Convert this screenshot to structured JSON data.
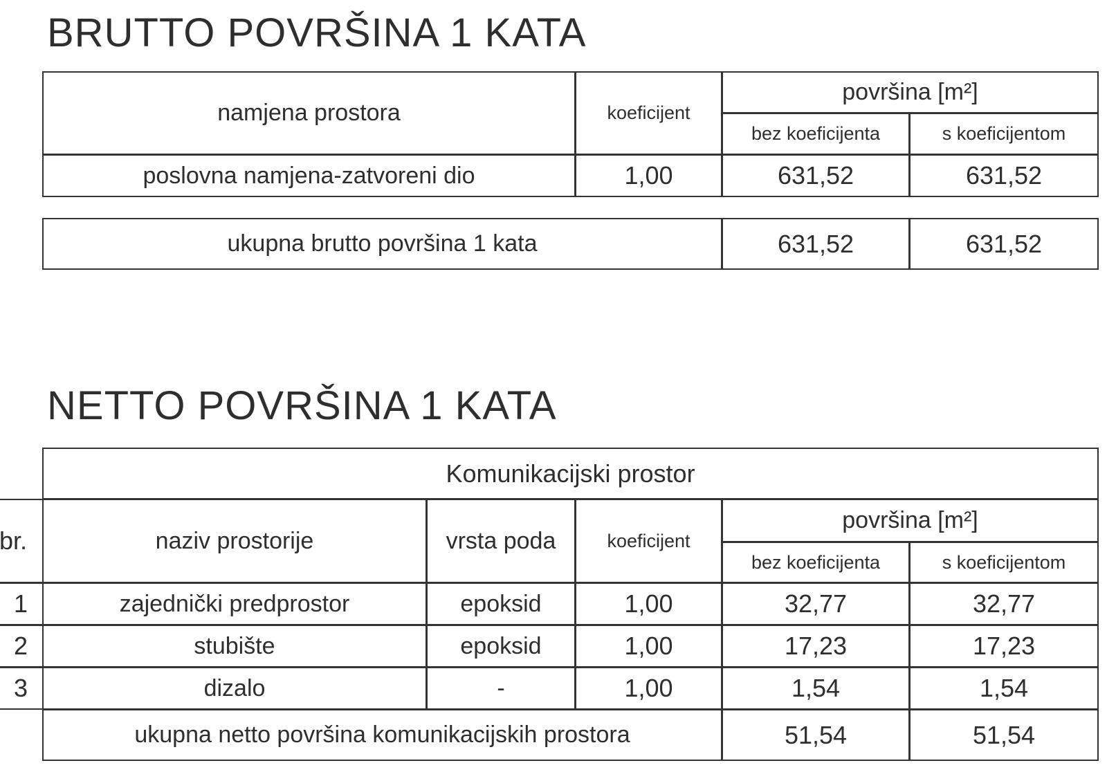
{
  "brutto": {
    "title": "BRUTTO POVRŠINA 1 KATA",
    "headers": {
      "namjena": "namjena prostora",
      "koeficijent": "koeficijent",
      "povrsina": "površina [m²]",
      "bez": "bez koeficijenta",
      "s": "s koeficijentom"
    },
    "rows": [
      {
        "namjena": "poslovna namjena-zatvoreni dio",
        "koeficijent": "1,00",
        "bez": "631,52",
        "s": "631,52"
      }
    ],
    "total": {
      "label": "ukupna brutto površina 1 kata",
      "bez": "631,52",
      "s": "631,52"
    }
  },
  "netto": {
    "title": "NETTO POVRŠINA 1 KATA",
    "section": "Komunikacijski prostor",
    "headers": {
      "br": "br.",
      "naziv": "naziv prostorije",
      "vrsta": "vrsta poda",
      "koeficijent": "koeficijent",
      "povrsina": "površina [m²]",
      "bez": "bez koeficijenta",
      "s": "s koeficijentom"
    },
    "rows": [
      {
        "br": "1",
        "naziv": "zajednički predprostor",
        "vrsta": "epoksid",
        "koeficijent": "1,00",
        "bez": "32,77",
        "s": "32,77"
      },
      {
        "br": "2",
        "naziv": "stubište",
        "vrsta": "epoksid",
        "koeficijent": "1,00",
        "bez": "17,23",
        "s": "17,23"
      },
      {
        "br": "3",
        "naziv": "dizalo",
        "vrsta": "-",
        "koeficijent": "1,00",
        "bez": "1,54",
        "s": "1,54"
      }
    ],
    "total": {
      "label": "ukupna netto površina komunikacijskih prostora",
      "bez": "51,54",
      "s": "51,54"
    }
  }
}
